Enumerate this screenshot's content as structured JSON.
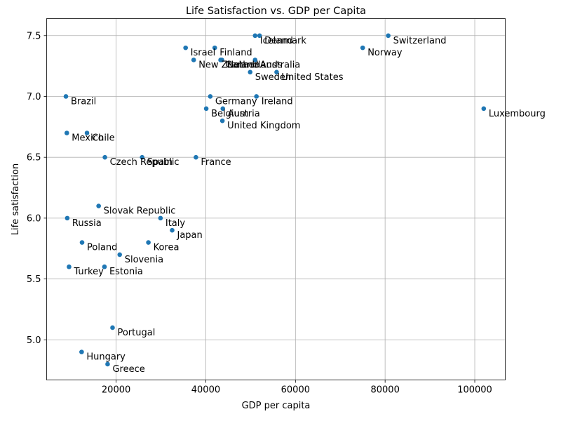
{
  "chart_data": {
    "type": "scatter",
    "title": "Life Satisfaction vs. GDP per Capita",
    "xlabel": "GDP per capita",
    "ylabel": "Life satisfaction",
    "xlim": [
      4500,
      106800
    ],
    "ylim": [
      4.67,
      7.64
    ],
    "xticks": [
      20000,
      40000,
      60000,
      80000,
      100000
    ],
    "yticks": [
      5.0,
      5.5,
      6.0,
      6.5,
      7.0,
      7.5
    ],
    "grid": true,
    "legend": "none",
    "marker_color": "#1f77b4",
    "points": [
      {
        "label": "Switzerland",
        "x": 80700,
        "y": 7.5
      },
      {
        "label": "Iceland",
        "x": 51000,
        "y": 7.5
      },
      {
        "label": "Denmark",
        "x": 52000,
        "y": 7.5
      },
      {
        "label": "Norway",
        "x": 75000,
        "y": 7.4
      },
      {
        "label": "Israel",
        "x": 35500,
        "y": 7.4
      },
      {
        "label": "Finland",
        "x": 42000,
        "y": 7.4
      },
      {
        "label": "New Zealand",
        "x": 37300,
        "y": 7.3
      },
      {
        "label": "Canada",
        "x": 43300,
        "y": 7.3
      },
      {
        "label": "Netherlands",
        "x": 43600,
        "y": 7.3
      },
      {
        "label": "Australia",
        "x": 51000,
        "y": 7.3
      },
      {
        "label": "Sweden",
        "x": 49900,
        "y": 7.2
      },
      {
        "label": "United States",
        "x": 55800,
        "y": 7.2
      },
      {
        "label": "Brazil",
        "x": 8800,
        "y": 7.0
      },
      {
        "label": "Germany",
        "x": 41000,
        "y": 7.0
      },
      {
        "label": "Ireland",
        "x": 51300,
        "y": 7.0
      },
      {
        "label": "Luxembourg",
        "x": 102000,
        "y": 6.9
      },
      {
        "label": "Belgium",
        "x": 40100,
        "y": 6.9
      },
      {
        "label": "Austria",
        "x": 43800,
        "y": 6.9
      },
      {
        "label": "United Kingdom",
        "x": 43700,
        "y": 6.8
      },
      {
        "label": "Mexico",
        "x": 9000,
        "y": 6.7
      },
      {
        "label": "Chile",
        "x": 13500,
        "y": 6.7
      },
      {
        "label": "Czech Republic",
        "x": 17500,
        "y": 6.5
      },
      {
        "label": "Spain",
        "x": 25800,
        "y": 6.5
      },
      {
        "label": "France",
        "x": 37800,
        "y": 6.5
      },
      {
        "label": "Slovak Republic",
        "x": 16100,
        "y": 6.1
      },
      {
        "label": "Russia",
        "x": 9100,
        "y": 6.0
      },
      {
        "label": "Italy",
        "x": 29900,
        "y": 6.0
      },
      {
        "label": "Japan",
        "x": 32500,
        "y": 5.9
      },
      {
        "label": "Poland",
        "x": 12400,
        "y": 5.8
      },
      {
        "label": "Korea",
        "x": 27200,
        "y": 5.8
      },
      {
        "label": "Slovenia",
        "x": 20800,
        "y": 5.7
      },
      {
        "label": "Turkey",
        "x": 9500,
        "y": 5.6
      },
      {
        "label": "Estonia",
        "x": 17400,
        "y": 5.6
      },
      {
        "label": "Portugal",
        "x": 19200,
        "y": 5.1
      },
      {
        "label": "Hungary",
        "x": 12300,
        "y": 4.9
      },
      {
        "label": "Greece",
        "x": 18100,
        "y": 4.8
      }
    ]
  }
}
